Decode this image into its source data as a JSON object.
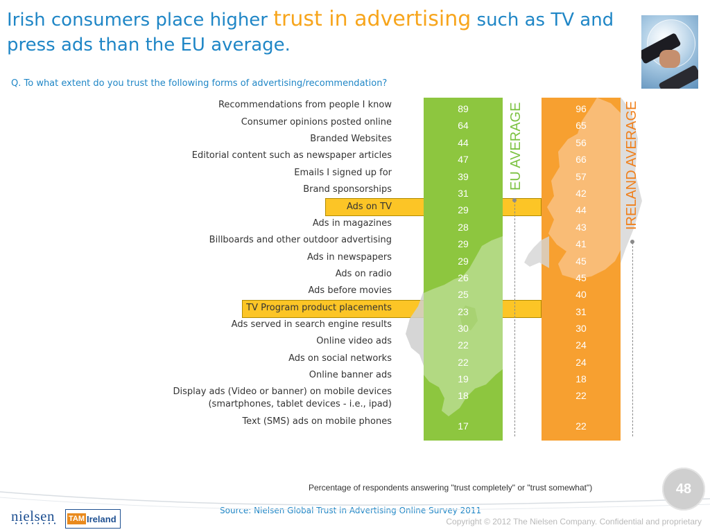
{
  "header": {
    "title_part1": "Irish consumers place higher ",
    "title_highlight": "trust in advertising",
    "title_part2": " such as TV and press ads than the EU average.",
    "question": "Q. To what extent do you trust the following forms of advertising/recommendation?"
  },
  "colors": {
    "eu": "#8dc63f",
    "ireland": "#f7a030",
    "highlight_band": "#fcc526",
    "title_blue": "#1f86c6",
    "title_accent": "#f7a51c"
  },
  "icons": {
    "handshake": "handshake-globe-image",
    "eu_map": "europe-map-icon",
    "ireland_map": "ireland-map-icon"
  },
  "chart_data": {
    "type": "table",
    "title": "Q. To what extent do you trust the following forms of advertising/recommendation?",
    "unit_note": "Percentage of respondents answering \"trust completely\" or \"trust somewhat\")",
    "categories": [
      "Recommendations from people I know",
      "Consumer opinions posted online",
      "Branded Websites",
      "Editorial content such as newspaper articles",
      "Emails I signed up for",
      "Brand sponsorships",
      "Ads on TV",
      "Ads in magazines",
      "Billboards and other outdoor advertising",
      "Ads in newspapers",
      "Ads on radio",
      "Ads before movies",
      "TV Program product placements",
      "Ads served in search engine results",
      "Online video ads",
      "Ads on social networks",
      "Online banner ads",
      "Display ads (Video or banner) on mobile devices (smartphones, tablet devices - i.e., ipad)",
      "Text (SMS) ads on mobile phones"
    ],
    "series": [
      {
        "name": "EU AVERAGE",
        "color": "#8dc63f",
        "values": [
          89,
          64,
          44,
          47,
          39,
          31,
          29,
          28,
          29,
          29,
          26,
          25,
          23,
          30,
          22,
          22,
          19,
          18,
          17
        ]
      },
      {
        "name": "IRELAND AVERAGE",
        "color": "#f7a030",
        "values": [
          96,
          65,
          56,
          66,
          57,
          42,
          44,
          43,
          41,
          45,
          45,
          40,
          31,
          30,
          24,
          24,
          18,
          22,
          22
        ]
      }
    ],
    "highlighted_categories": [
      "Ads on TV",
      "TV Program product placements"
    ]
  },
  "footer": {
    "note": "Percentage of respondents answering \"trust completely\" or \"trust somewhat\")",
    "source": "Source: Nielsen Global Trust in Advertising Online Survey 2011",
    "page_number": "48",
    "copyright": "Copyright © 2012 The Nielsen Company. Confidential and proprietary",
    "logo_nielsen": "nielsen",
    "logo_tam_t": "TAM",
    "logo_tam_i": "Ireland"
  }
}
